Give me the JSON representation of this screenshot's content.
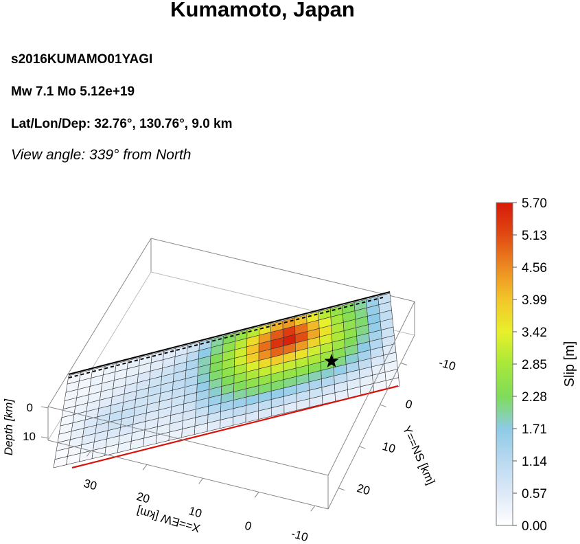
{
  "header": {
    "title": "Kumamoto, Japan",
    "event_id": "s2016KUMAMO01YAGI",
    "magnitude": "Mw 7.1  Mo 5.12e+19",
    "location": "Lat/Lon/Dep: 32.76°, 130.76°, 9.0 km",
    "view_angle": "View angle: 339° from North"
  },
  "chart_data": {
    "type": "heatmap",
    "title": "Kumamoto, Japan",
    "colorbar": {
      "label": "Slip [m]",
      "ticks": [
        "5.70",
        "5.13",
        "4.56",
        "3.99",
        "3.42",
        "2.85",
        "2.28",
        "1.71",
        "1.14",
        "0.57",
        "0.00"
      ],
      "range": [
        0,
        5.7
      ],
      "colors": [
        "#ffffff",
        "#dde9f7",
        "#b9d9f0",
        "#8dcbe6",
        "#7fdc5a",
        "#a8e83a",
        "#e8f02a",
        "#f3c52a",
        "#ec8a22",
        "#e04a12",
        "#d81a0a"
      ]
    },
    "x_axis": {
      "label": "X==EW [km]",
      "ticks": [
        "30",
        "20",
        "10",
        "0",
        "-10"
      ],
      "range": [
        -10,
        35
      ]
    },
    "y_axis": {
      "label": "Y==NS [km]",
      "ticks": [
        "-10",
        "0",
        "10",
        "20"
      ],
      "range": [
        -15,
        25
      ]
    },
    "z_axis": {
      "label": "Depth [km]",
      "ticks": [
        "0",
        "10"
      ],
      "range": [
        0,
        20
      ]
    },
    "grid": {
      "rows": 11,
      "cols": 27
    },
    "slip_m": [
      [
        0.2,
        0.2,
        0.2,
        0.3,
        0.3,
        0.4,
        0.4,
        0.5,
        0.5,
        0.6,
        0.8,
        1.3,
        2.0,
        2.3,
        2.6,
        3.0,
        3.6,
        4.2,
        4.4,
        4.0,
        3.5,
        3.0,
        2.6,
        2.3,
        2.0,
        1.5,
        0.9
      ],
      [
        0.2,
        0.2,
        0.3,
        0.3,
        0.3,
        0.4,
        0.4,
        0.5,
        0.6,
        0.8,
        1.1,
        1.7,
        2.1,
        2.5,
        3.0,
        3.7,
        4.4,
        5.0,
        5.3,
        4.8,
        4.1,
        3.4,
        2.8,
        2.4,
        2.1,
        1.6,
        0.9
      ],
      [
        0.2,
        0.2,
        0.3,
        0.4,
        0.4,
        0.5,
        0.6,
        0.7,
        0.8,
        1.0,
        1.3,
        1.9,
        2.3,
        2.7,
        3.2,
        4.0,
        4.8,
        5.4,
        5.6,
        5.1,
        4.3,
        3.6,
        2.9,
        2.5,
        2.2,
        1.7,
        1.0
      ],
      [
        0.2,
        0.3,
        0.3,
        0.4,
        0.5,
        0.6,
        0.7,
        0.8,
        0.9,
        1.0,
        1.2,
        1.9,
        2.3,
        2.7,
        3.2,
        3.9,
        4.5,
        4.9,
        4.8,
        4.4,
        3.8,
        3.3,
        2.9,
        2.5,
        2.1,
        1.6,
        0.9
      ],
      [
        0.2,
        0.3,
        0.4,
        0.5,
        0.6,
        0.7,
        0.8,
        0.9,
        0.9,
        1.0,
        1.2,
        1.8,
        2.2,
        2.5,
        2.9,
        3.3,
        3.7,
        3.9,
        3.8,
        3.6,
        3.2,
        3.0,
        2.7,
        2.3,
        1.9,
        1.4,
        0.8
      ],
      [
        0.2,
        0.3,
        0.5,
        0.7,
        0.8,
        0.8,
        0.8,
        0.8,
        0.8,
        0.9,
        1.1,
        1.6,
        2.0,
        2.3,
        2.6,
        2.9,
        3.1,
        3.2,
        3.1,
        3.0,
        2.9,
        2.7,
        2.4,
        2.1,
        1.7,
        1.2,
        0.7
      ],
      [
        0.2,
        0.4,
        0.6,
        0.8,
        0.9,
        0.9,
        0.8,
        0.7,
        0.7,
        0.8,
        1.0,
        1.4,
        1.8,
        2.1,
        2.3,
        2.5,
        2.6,
        2.6,
        2.6,
        2.5,
        2.4,
        2.3,
        2.1,
        1.8,
        1.4,
        0.9,
        0.5
      ],
      [
        0.2,
        0.4,
        0.6,
        0.7,
        0.8,
        0.8,
        0.7,
        0.6,
        0.6,
        0.7,
        0.8,
        1.2,
        1.5,
        1.8,
        2.0,
        2.1,
        2.2,
        2.2,
        2.1,
        2.0,
        1.9,
        1.8,
        1.6,
        1.3,
        1.0,
        0.6,
        0.4
      ],
      [
        0.2,
        0.3,
        0.5,
        0.6,
        0.6,
        0.6,
        0.5,
        0.5,
        0.5,
        0.6,
        0.7,
        0.9,
        1.2,
        1.4,
        1.5,
        1.6,
        1.6,
        1.6,
        1.5,
        1.4,
        1.3,
        1.2,
        1.0,
        0.8,
        0.6,
        0.4,
        0.3
      ],
      [
        0.1,
        0.2,
        0.3,
        0.4,
        0.4,
        0.4,
        0.4,
        0.4,
        0.4,
        0.5,
        0.5,
        0.7,
        0.8,
        0.9,
        1.0,
        1.0,
        1.0,
        1.0,
        0.9,
        0.9,
        0.8,
        0.7,
        0.6,
        0.5,
        0.4,
        0.3,
        0.2
      ],
      [
        0.1,
        0.1,
        0.2,
        0.2,
        0.2,
        0.3,
        0.3,
        0.3,
        0.3,
        0.3,
        0.4,
        0.4,
        0.5,
        0.5,
        0.6,
        0.6,
        0.6,
        0.6,
        0.5,
        0.5,
        0.5,
        0.4,
        0.4,
        0.3,
        0.3,
        0.2,
        0.1
      ]
    ],
    "hypocenter": {
      "x_km": 0,
      "y_km": -5,
      "depth_km": 9.0
    }
  }
}
